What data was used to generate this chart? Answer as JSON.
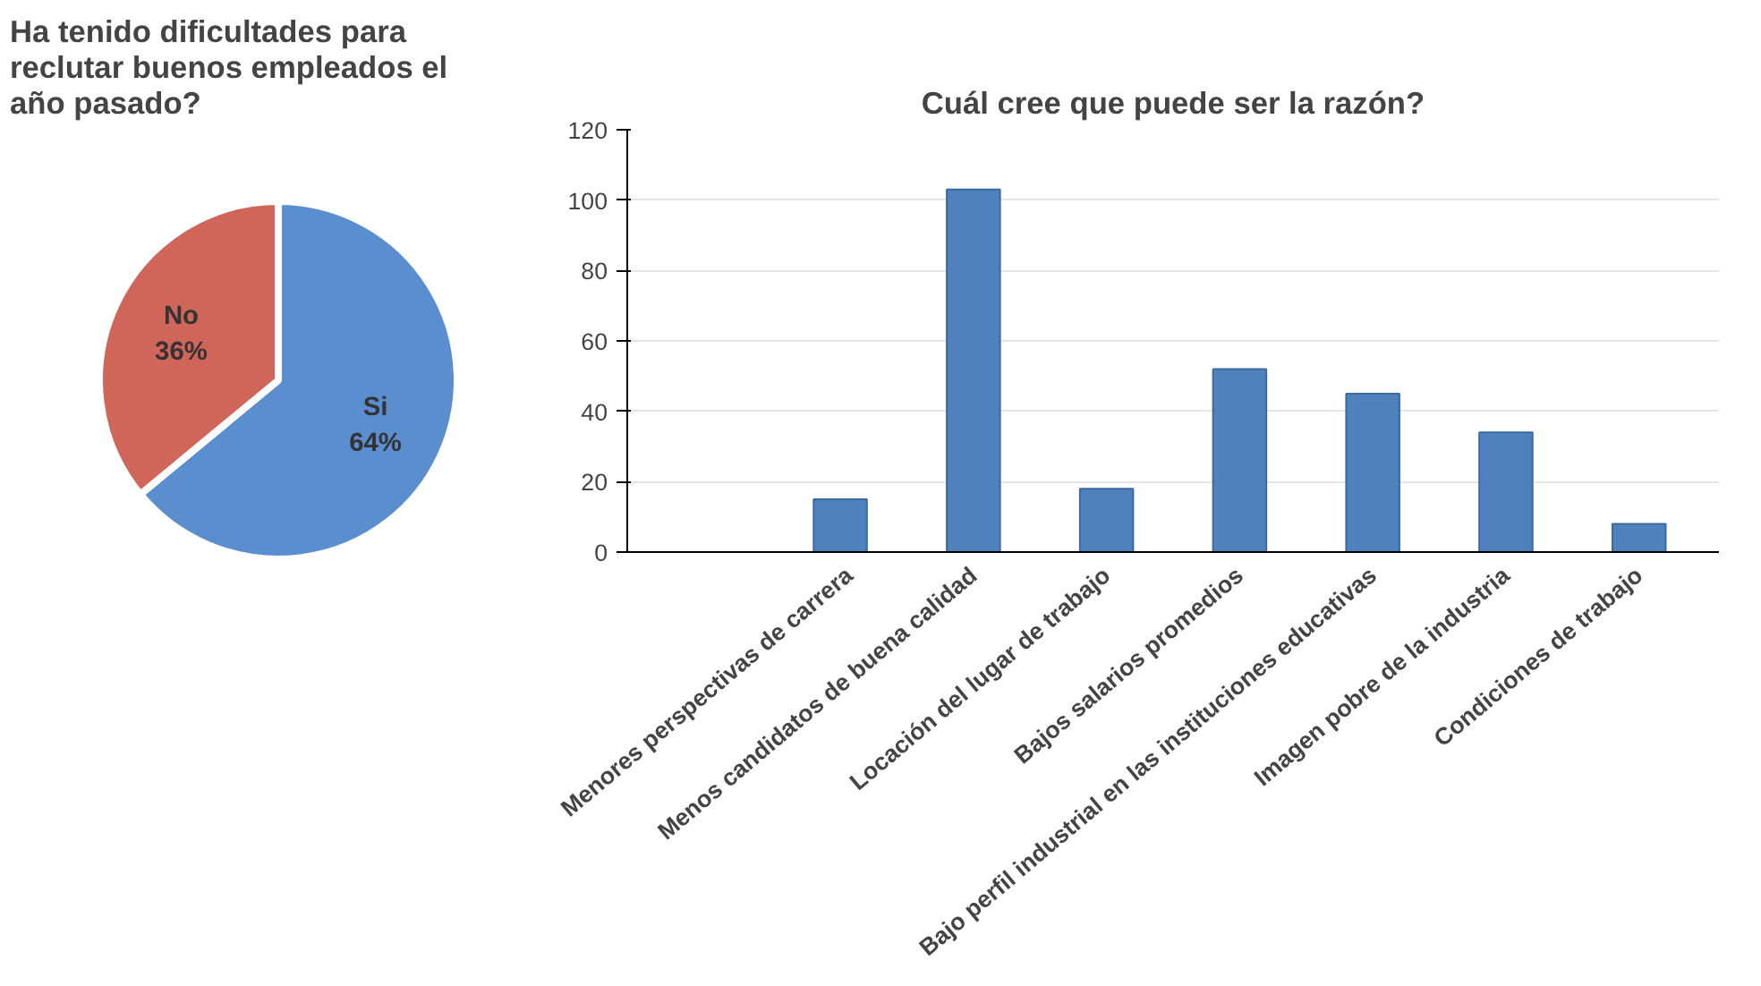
{
  "chart_data": [
    {
      "type": "pie",
      "title": "Ha tenido dificultades para reclutar buenos empleados el año pasado?",
      "categories": [
        "No",
        "Si"
      ],
      "values": [
        36,
        64
      ],
      "colors": [
        "#d0655a",
        "#5b8ecf"
      ],
      "value_labels": [
        "36%",
        "64%"
      ]
    },
    {
      "type": "bar",
      "title": "Cuál cree que puede ser la razón?",
      "categories": [
        "Menores perspectivas de carrera",
        "Menos candidatos de buena calidad",
        "Locación del lugar de trabajo",
        "Bajos salarios promedios",
        "Bajo perfil industrial en las instituciones educativas",
        "Imagen pobre de la industria",
        "Condiciones de trabajo"
      ],
      "values": [
        15,
        103,
        18,
        52,
        45,
        34,
        8
      ],
      "color": "#4f81bd",
      "ylim": [
        0,
        120
      ],
      "yticks": [
        0,
        20,
        40,
        60,
        80,
        100,
        120
      ],
      "grid": "y"
    }
  ]
}
